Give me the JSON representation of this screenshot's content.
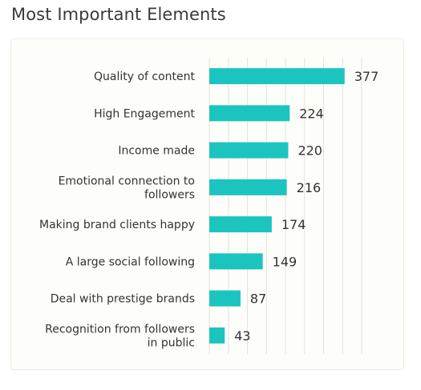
{
  "page": {
    "title": "Most Important Elements"
  },
  "chart_data": {
    "type": "bar",
    "orientation": "horizontal",
    "title": "Most Important Elements",
    "categories": [
      [
        "Quality of content"
      ],
      [
        "High Engagement"
      ],
      [
        "Income made"
      ],
      [
        "Emotional connection to",
        "followers"
      ],
      [
        "Making brand clients happy"
      ],
      [
        "A large social following"
      ],
      [
        "Deal with prestige brands"
      ],
      [
        "Recognition from followers",
        "in public"
      ]
    ],
    "values": [
      377,
      224,
      220,
      216,
      174,
      149,
      87,
      43
    ],
    "value_labels": [
      "377",
      "224",
      "220",
      "216",
      "174",
      "149",
      "87",
      "43"
    ],
    "xlim": [
      0,
      400
    ],
    "grid": true,
    "bar_color": "#1cc4c0",
    "grid_color": "#e3e3dc",
    "background_color": "#fdfdfa"
  }
}
